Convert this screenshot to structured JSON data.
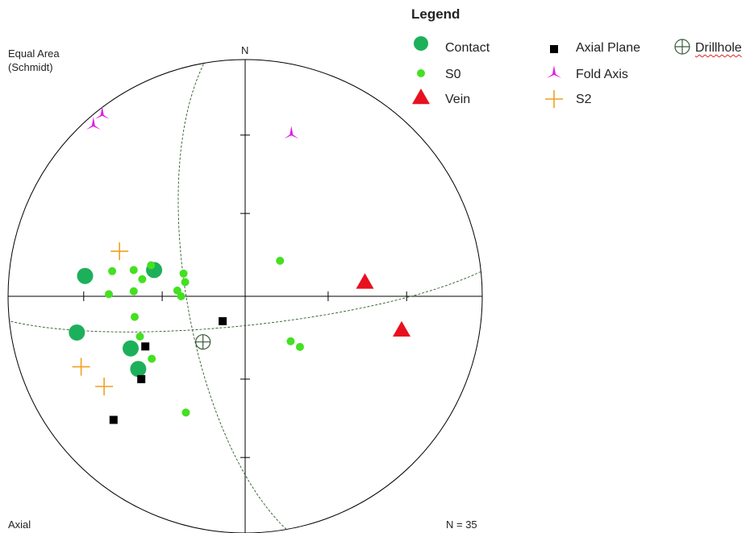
{
  "header": {
    "projection_line1": "Equal Area",
    "projection_line2": "(Schmidt)",
    "north_label": "N",
    "footer_left": "Axial",
    "footer_right": "N = 35"
  },
  "legend": {
    "title": "Legend",
    "items": [
      {
        "key": "contact",
        "label": "Contact",
        "symbol": "large-circle",
        "color": "#1db05a"
      },
      {
        "key": "s0",
        "label": "S0",
        "symbol": "small-circle",
        "color": "#44e021"
      },
      {
        "key": "vein",
        "label": "Vein",
        "symbol": "triangle",
        "color": "#e8101e"
      },
      {
        "key": "axial",
        "label": "Axial Plane",
        "symbol": "square",
        "color": "#000000"
      },
      {
        "key": "fold",
        "label": "Fold Axis",
        "symbol": "tripod",
        "color": "#e020e0"
      },
      {
        "key": "s2",
        "label": "S2",
        "symbol": "plus",
        "color": "#f0a020"
      },
      {
        "key": "drill",
        "label": "Drillhole",
        "symbol": "circled-plus",
        "color": "#3a5a3a"
      }
    ]
  },
  "chart_data": {
    "type": "scatter",
    "projection": "equal-area stereonet, lower hemisphere",
    "coordinate_note": "x,y are stereonet plane coordinates, east and north positive, primitive circle radius 1",
    "grid": false,
    "axis_ticks": [
      -0.681,
      -0.35,
      0.35,
      0.681
    ],
    "series": [
      {
        "name": "Contact",
        "color": "#1db05a",
        "symbol": "large-circle",
        "points": [
          [
            -0.675,
            0.086
          ],
          [
            -0.384,
            0.111
          ],
          [
            -0.71,
            -0.153
          ],
          [
            -0.483,
            -0.22
          ],
          [
            -0.451,
            -0.307
          ]
        ]
      },
      {
        "name": "S0",
        "color": "#44e021",
        "symbol": "small-circle",
        "points": [
          [
            -0.561,
            0.106
          ],
          [
            -0.47,
            0.111
          ],
          [
            -0.397,
            0.131
          ],
          [
            -0.434,
            0.072
          ],
          [
            -0.26,
            0.096
          ],
          [
            -0.253,
            0.06
          ],
          [
            -0.575,
            0.009
          ],
          [
            -0.47,
            0.021
          ],
          [
            -0.286,
            0.024
          ],
          [
            -0.27,
            0.0
          ],
          [
            0.147,
            0.15
          ],
          [
            -0.466,
            -0.087
          ],
          [
            -0.444,
            -0.17
          ],
          [
            -0.394,
            -0.264
          ],
          [
            0.192,
            -0.19
          ],
          [
            0.231,
            -0.214
          ],
          [
            -0.25,
            -0.491
          ]
        ]
      },
      {
        "name": "Vein",
        "color": "#e8101e",
        "symbol": "triangle",
        "points": [
          [
            0.505,
            0.06
          ],
          [
            0.66,
            -0.142
          ]
        ]
      },
      {
        "name": "Axial Plane",
        "color": "#000000",
        "symbol": "square",
        "points": [
          [
            -0.095,
            -0.105
          ],
          [
            -0.421,
            -0.212
          ],
          [
            -0.438,
            -0.35
          ],
          [
            -0.555,
            -0.522
          ]
        ]
      },
      {
        "name": "Fold Axis",
        "color": "#e020e0",
        "symbol": "tripod",
        "points": [
          [
            -0.603,
            0.769
          ],
          [
            -0.64,
            0.724
          ],
          [
            0.195,
            0.686
          ]
        ]
      },
      {
        "name": "S2",
        "color": "#f0a020",
        "symbol": "plus",
        "points": [
          [
            -0.53,
            0.19
          ],
          [
            -0.692,
            -0.298
          ],
          [
            -0.595,
            -0.381
          ]
        ]
      },
      {
        "name": "Drillhole",
        "color": "#3a5a3a",
        "symbol": "circled-plus",
        "points": [
          [
            -0.178,
            -0.193
          ]
        ]
      }
    ],
    "great_circles": [
      {
        "strike_azimuth": 84,
        "dip": 80
      },
      {
        "strike_azimuth": 170,
        "dip": 70
      }
    ]
  }
}
